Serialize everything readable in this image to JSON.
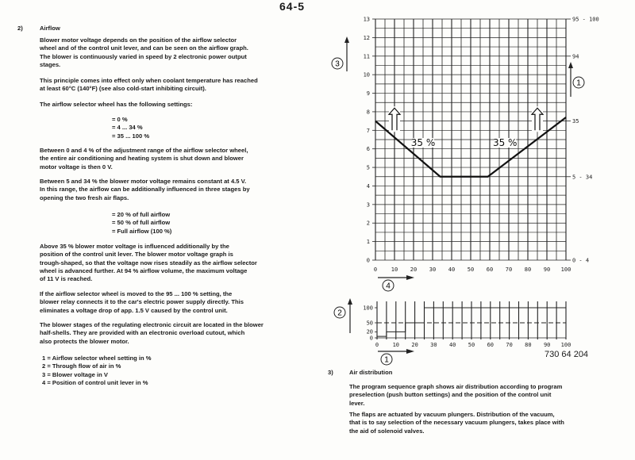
{
  "page_number": "64-5",
  "section2": {
    "number": "2)",
    "title": "Airflow",
    "p1": [
      "Blower motor voltage depends on the position of the airflow selector",
      "wheel and of the control unit lever, and can be seen on the airflow graph.",
      "The blower is continuously varied in speed by 2 electronic power output",
      "stages."
    ],
    "p2": [
      "This principle comes into effect only when coolant temperature has reached",
      "at least 60°C (140°F) (see also cold-start inhibiting circuit)."
    ],
    "p3": "The airflow selector wheel has the following settings:",
    "settings": [
      "= 0 %",
      "= 4 ... 34 %",
      "= 35 ... 100 %"
    ],
    "p4": [
      "Between 0 and 4 % of the adjustment range of the airflow selector wheel,",
      "the entire air conditioning and heating system is shut down and blower",
      "motor voltage is then 0 V."
    ],
    "p5": [
      "Between 5 and 34 % the blower motor voltage remains constant at 4.5 V.",
      "In this range, the airflow can be additionally influenced in three stages by",
      "opening the two fresh air flaps."
    ],
    "stages": [
      "=  20 % of full airflow",
      "=  50 % of full airflow",
      "=  Full airflow (100 %)"
    ],
    "p6": [
      "Above 35 % blower motor voltage is influenced additionally by the",
      "position of the control unit lever. The blower motor voltage graph is",
      "trough-shaped, so that the voltage now rises steadily as the airflow selector",
      "wheel is advanced further. At 94 % airflow volume, the maximum voltage",
      "of 11 V is reached."
    ],
    "p7": [
      "If the airflow selector wheel is moved to the 95 ... 100 % setting, the",
      "blower relay connects it to the car's electric power supply directly. This",
      "eliminates a voltage drop of app. 1.5 V caused by the control unit."
    ],
    "p8": [
      "The blower stages of the regulating electronic circuit are located in the blower",
      "half-shells. They are provided with an electronic overload cutout, which",
      "also protects the blower motor."
    ],
    "legend": [
      "1  =  Airflow selector wheel setting in %",
      "2  =  Through flow of air in %",
      "3  =  Blower voltage in V",
      "4  =  Position of control unit lever in %"
    ]
  },
  "section3": {
    "number": "3)",
    "title": "Air distribution",
    "p1": [
      "The program sequence graph shows air distribution according to program",
      "preselection (push button settings) and the position of the control unit",
      "lever."
    ],
    "p2": [
      "The flaps are actuated by vacuum plungers. Distribution of the vacuum,",
      "that is to say selection of the necessary vacuum plungers, takes place with",
      "the aid of solenoid valves."
    ]
  },
  "figure_code": "730 64 204",
  "chart_data": [
    {
      "type": "line",
      "xlim": [
        0,
        100
      ],
      "ylim": [
        0,
        13
      ],
      "grid": true,
      "xticks": [
        "0",
        "10",
        "20",
        "30",
        "40",
        "50",
        "60",
        "70",
        "80",
        "90",
        "100"
      ],
      "yticks": [
        "0",
        "1",
        "2",
        "3",
        "4",
        "5",
        "6",
        "7",
        "8",
        "9",
        "10",
        "11",
        "12",
        "13"
      ],
      "x_axis_marker": "4",
      "y_axis_marker": "3",
      "right_axis_marker": "1",
      "right_labels": [
        {
          "y": 13,
          "text": "95 - 100"
        },
        {
          "y": 11,
          "text": "94"
        },
        {
          "y": 7.5,
          "text": "35"
        },
        {
          "y": 4.5,
          "text": "5 - 34"
        },
        {
          "y": 0,
          "text": "0 - 4"
        }
      ],
      "series": [
        {
          "x": [
            0,
            34,
            59,
            100
          ],
          "y": [
            7.5,
            4.5,
            4.5,
            7.7
          ]
        }
      ],
      "annotations": [
        {
          "x": 25,
          "y": 6.2,
          "text": "35 %"
        },
        {
          "x": 68,
          "y": 6.2,
          "text": "35 %"
        }
      ],
      "up_arrows_at_x": [
        10,
        85
      ]
    },
    {
      "type": "line",
      "xlim": [
        0,
        100
      ],
      "ylim": [
        0,
        100
      ],
      "grid": true,
      "xticks": [
        "0",
        "10",
        "20",
        "30",
        "40",
        "50",
        "60",
        "70",
        "80",
        "90",
        "100"
      ],
      "yticks": [
        "0",
        "20",
        "50",
        "100"
      ],
      "x_axis_marker": "1",
      "y_axis_marker": "2",
      "series": [
        {
          "style": "solid",
          "x": [
            0,
            5,
            5,
            15,
            15,
            25,
            25,
            100
          ],
          "y": [
            5,
            5,
            20,
            20,
            50,
            50,
            100,
            100
          ]
        },
        {
          "style": "dashed",
          "x": [
            0,
            100
          ],
          "y": [
            50,
            50
          ]
        }
      ]
    }
  ]
}
